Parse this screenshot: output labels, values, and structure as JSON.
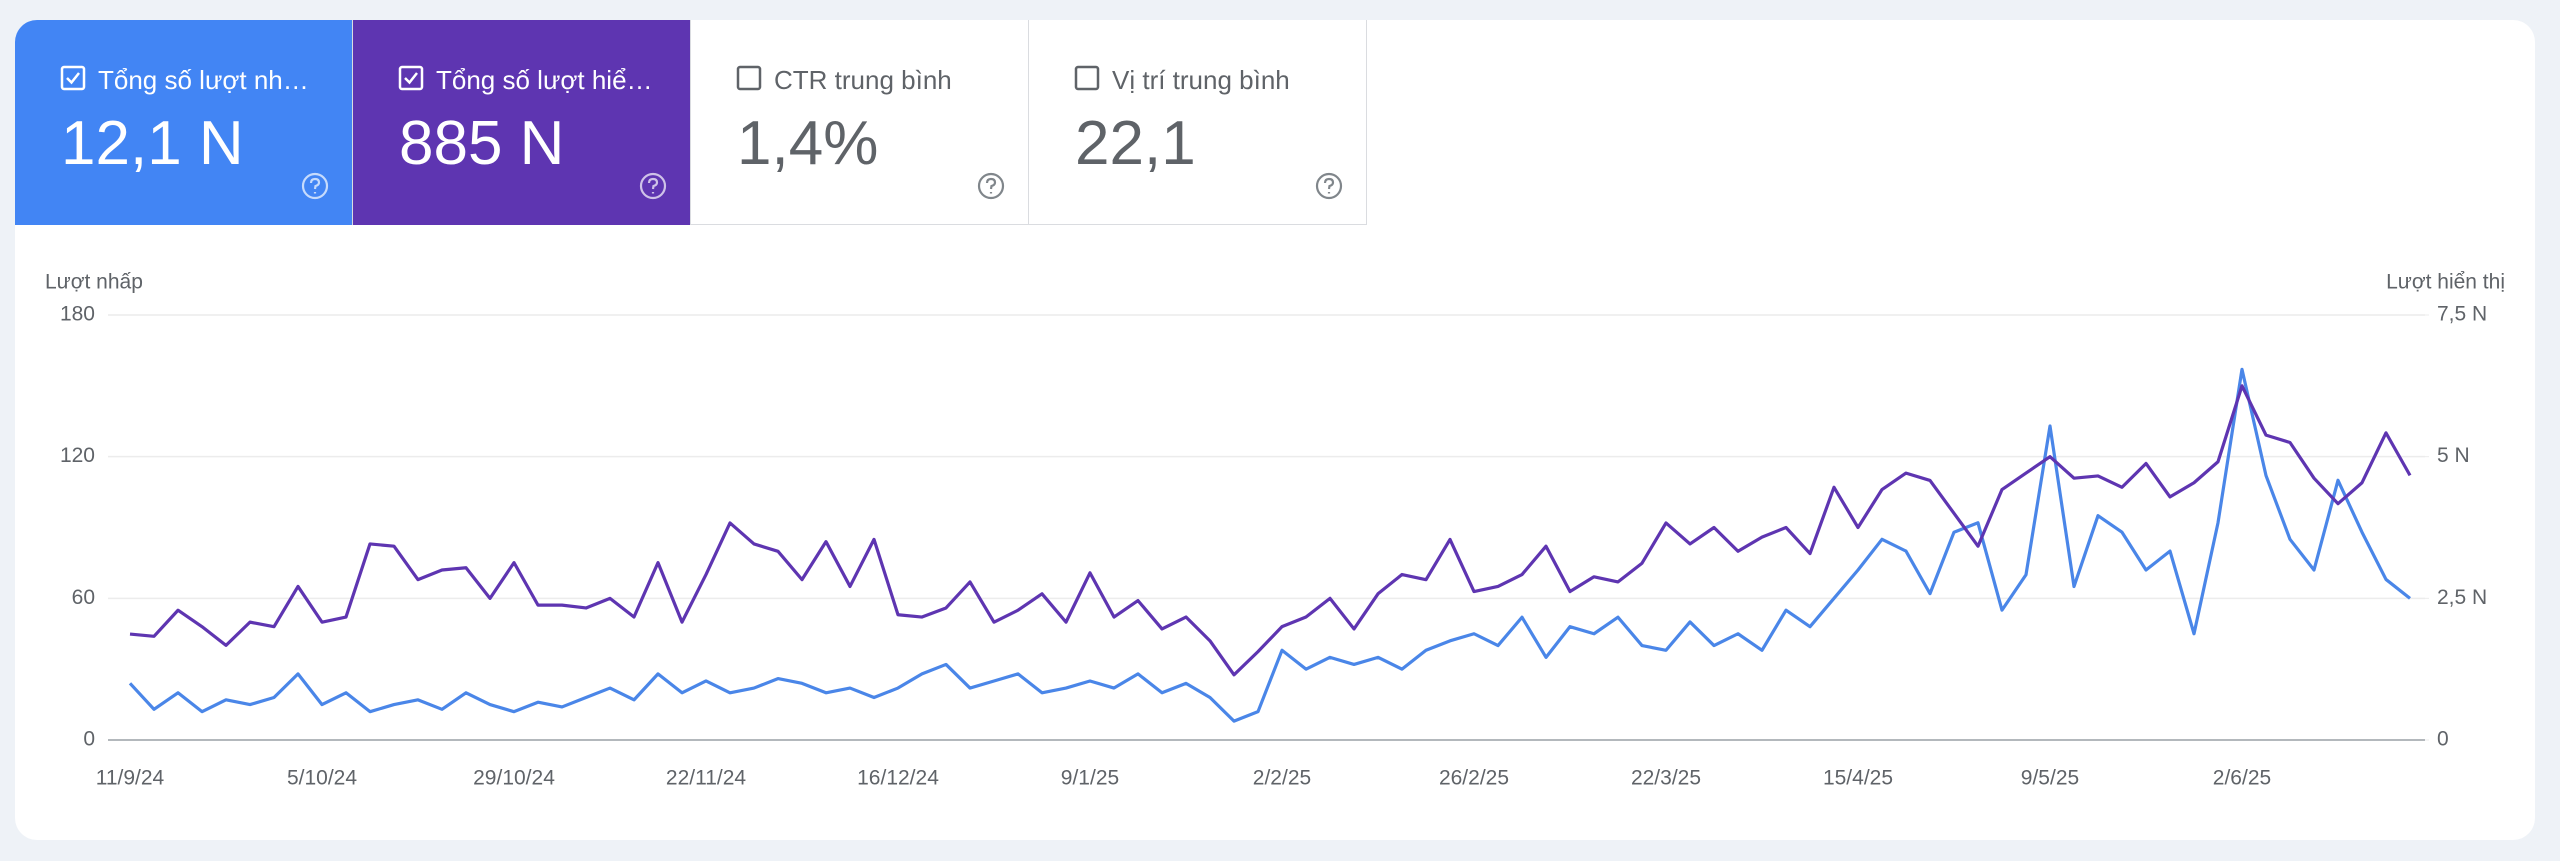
{
  "metrics": [
    {
      "label": "Tổng số lượt nh…",
      "value": "12,1 N",
      "checked": true,
      "color": "#4285f4"
    },
    {
      "label": "Tổng số lượt hiể…",
      "value": "885 N",
      "checked": true,
      "color": "#5e35b1"
    },
    {
      "label": "CTR trung bình",
      "value": "1,4%",
      "checked": false,
      "color": "#ffffff"
    },
    {
      "label": "Vị trí trung bình",
      "value": "22,1",
      "checked": false,
      "color": "#ffffff"
    }
  ],
  "chart_data": {
    "type": "line",
    "y_label": "Lượt nhấp",
    "y2_label": "Lượt hiển thị",
    "categories": [
      "11/9/24",
      null,
      null,
      null,
      null,
      null,
      null,
      null,
      "5/10/24",
      null,
      null,
      null,
      null,
      null,
      null,
      null,
      "29/10/24",
      null,
      null,
      null,
      null,
      null,
      null,
      null,
      "22/11/24",
      null,
      null,
      null,
      null,
      null,
      null,
      null,
      "16/12/24",
      null,
      null,
      null,
      null,
      null,
      null,
      null,
      "9/1/25",
      null,
      null,
      null,
      null,
      null,
      null,
      null,
      "2/2/25",
      null,
      null,
      null,
      null,
      null,
      null,
      null,
      "26/2/25",
      null,
      null,
      null,
      null,
      null,
      null,
      null,
      "22/3/25",
      null,
      null,
      null,
      null,
      null,
      null,
      null,
      "15/4/25",
      null,
      null,
      null,
      null,
      null,
      null,
      null,
      "9/5/25",
      null,
      null,
      null,
      null,
      null,
      null,
      null,
      "2/6/25",
      null,
      null,
      null,
      null,
      null,
      null,
      null
    ],
    "ylim": [
      0,
      180
    ],
    "yticks": [
      0,
      60,
      120,
      180
    ],
    "y2lim": [
      0,
      7500
    ],
    "y2ticks": [
      0,
      {
        "value": 2500,
        "label": "2,5 N"
      },
      {
        "value": 5000,
        "label": "5 N"
      },
      {
        "value": 7500,
        "label": "7,5 N"
      }
    ],
    "grid": true,
    "series": [
      {
        "name": "Tổng số lượt nh…",
        "color": "#4a86e8",
        "values": [
          24,
          13,
          20,
          12,
          17,
          15,
          18,
          28,
          15,
          20,
          12,
          15,
          17,
          13,
          20,
          15,
          12,
          16,
          14,
          18,
          22,
          17,
          28,
          20,
          25,
          20,
          22,
          26,
          24,
          20,
          22,
          18,
          22,
          28,
          32,
          22,
          25,
          28,
          20,
          22,
          25,
          22,
          28,
          20,
          24,
          18,
          8,
          12,
          38,
          30,
          35,
          32,
          35,
          30,
          38,
          42,
          45,
          40,
          52,
          35,
          48,
          45,
          52,
          40,
          38,
          50,
          40,
          45,
          38,
          55,
          48,
          60,
          72,
          85,
          80,
          62,
          88,
          92,
          55,
          70,
          133,
          65,
          95,
          88,
          72,
          80,
          45,
          92,
          157,
          112,
          85,
          72,
          110,
          88,
          68,
          60
        ]
      },
      {
        "name": "Tổng số lượt hiể…",
        "color": "#5e35b1",
        "axis": "y2",
        "values": [
          1870,
          1830,
          2290,
          2000,
          1670,
          2080,
          2000,
          2710,
          2080,
          2170,
          3460,
          3420,
          2830,
          3000,
          3040,
          2500,
          3130,
          2380,
          2380,
          2330,
          2500,
          2170,
          3130,
          2080,
          2920,
          3830,
          3460,
          3330,
          2830,
          3500,
          2710,
          3540,
          2210,
          2170,
          2330,
          2790,
          2080,
          2290,
          2580,
          2080,
          2950,
          2170,
          2460,
          1960,
          2170,
          1750,
          1150,
          1560,
          2000,
          2170,
          2500,
          1960,
          2580,
          2920,
          2830,
          3540,
          2620,
          2710,
          2920,
          3420,
          2620,
          2880,
          2790,
          3120,
          3830,
          3460,
          3750,
          3330,
          3580,
          3750,
          3290,
          4460,
          3750,
          4420,
          4710,
          4580,
          4000,
          3420,
          4420,
          4710,
          5000,
          4620,
          4660,
          4460,
          4880,
          4290,
          4540,
          4910,
          6250,
          5380,
          5250,
          4620,
          4170,
          4540,
          5420,
          4670
        ]
      }
    ]
  }
}
